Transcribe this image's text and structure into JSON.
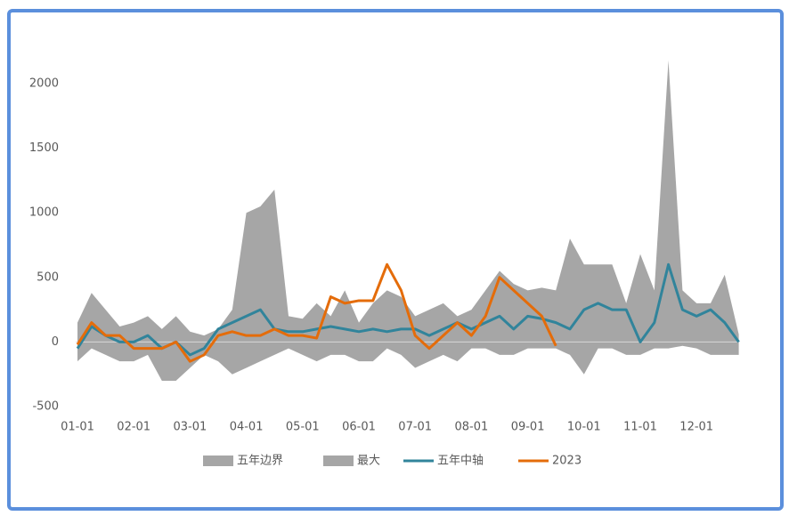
{
  "chart_data": {
    "type": "line",
    "categories": [
      "01-01",
      null,
      null,
      null,
      "02-01",
      null,
      null,
      null,
      "03-01",
      null,
      null,
      null,
      "04-01",
      null,
      null,
      null,
      "05-01",
      null,
      null,
      null,
      "06-01",
      null,
      null,
      null,
      "07-01",
      null,
      null,
      null,
      "08-01",
      null,
      null,
      null,
      "09-01",
      null,
      null,
      null,
      "10-01",
      null,
      null,
      null,
      "11-01",
      null,
      null,
      null,
      "12-01",
      null,
      null,
      null
    ],
    "series": [
      {
        "name": "五年边界",
        "kind": "area",
        "color": "#a6a6a6",
        "values": [
          -150,
          -50,
          -100,
          -150,
          -150,
          -100,
          -300,
          -300,
          -200,
          -100,
          -150,
          -250,
          -200,
          -150,
          -100,
          -50,
          -100,
          -150,
          -100,
          -100,
          -150,
          -150,
          -50,
          -100,
          -200,
          -150,
          -100,
          -150,
          -50,
          -50,
          -100,
          -100,
          -50,
          -50,
          -50,
          -100,
          -250,
          -50,
          -50,
          -100,
          -100,
          -50,
          -50,
          -30,
          -50,
          -100,
          -100,
          -100
        ]
      },
      {
        "name": "最大",
        "kind": "area",
        "color": "#a6a6a6",
        "values": [
          150,
          380,
          250,
          120,
          150,
          200,
          100,
          200,
          80,
          50,
          100,
          250,
          1000,
          1050,
          1180,
          200,
          180,
          300,
          200,
          400,
          150,
          300,
          400,
          350,
          200,
          250,
          300,
          200,
          250,
          400,
          550,
          450,
          400,
          420,
          400,
          800,
          600,
          600,
          600,
          300,
          680,
          400,
          2180,
          400,
          300,
          300,
          520,
          60
        ]
      },
      {
        "name": "五年中轴",
        "kind": "line",
        "color": "#31849b",
        "values": [
          -50,
          120,
          50,
          0,
          0,
          50,
          -50,
          0,
          -100,
          -50,
          100,
          150,
          200,
          250,
          100,
          80,
          80,
          100,
          120,
          100,
          80,
          100,
          80,
          100,
          100,
          50,
          100,
          150,
          100,
          150,
          200,
          100,
          200,
          180,
          150,
          100,
          250,
          300,
          250,
          250,
          0,
          150,
          600,
          250,
          200,
          250,
          150,
          0
        ]
      },
      {
        "name": "2023",
        "kind": "line",
        "color": "#e46c0a",
        "values": [
          -20,
          150,
          50,
          50,
          -50,
          -50,
          -50,
          0,
          -150,
          -100,
          50,
          80,
          50,
          50,
          100,
          50,
          50,
          30,
          350,
          300,
          320,
          320,
          600,
          400,
          50,
          -50,
          50,
          150,
          50,
          200,
          500,
          400,
          300,
          200,
          -30,
          null,
          null,
          null,
          null,
          null,
          null,
          null,
          null,
          null,
          null,
          null,
          null,
          null
        ]
      }
    ],
    "ylim": [
      -500,
      2200
    ],
    "yticks": [
      -500,
      0,
      500,
      1000,
      1500,
      2000
    ],
    "legend": "bottom"
  }
}
